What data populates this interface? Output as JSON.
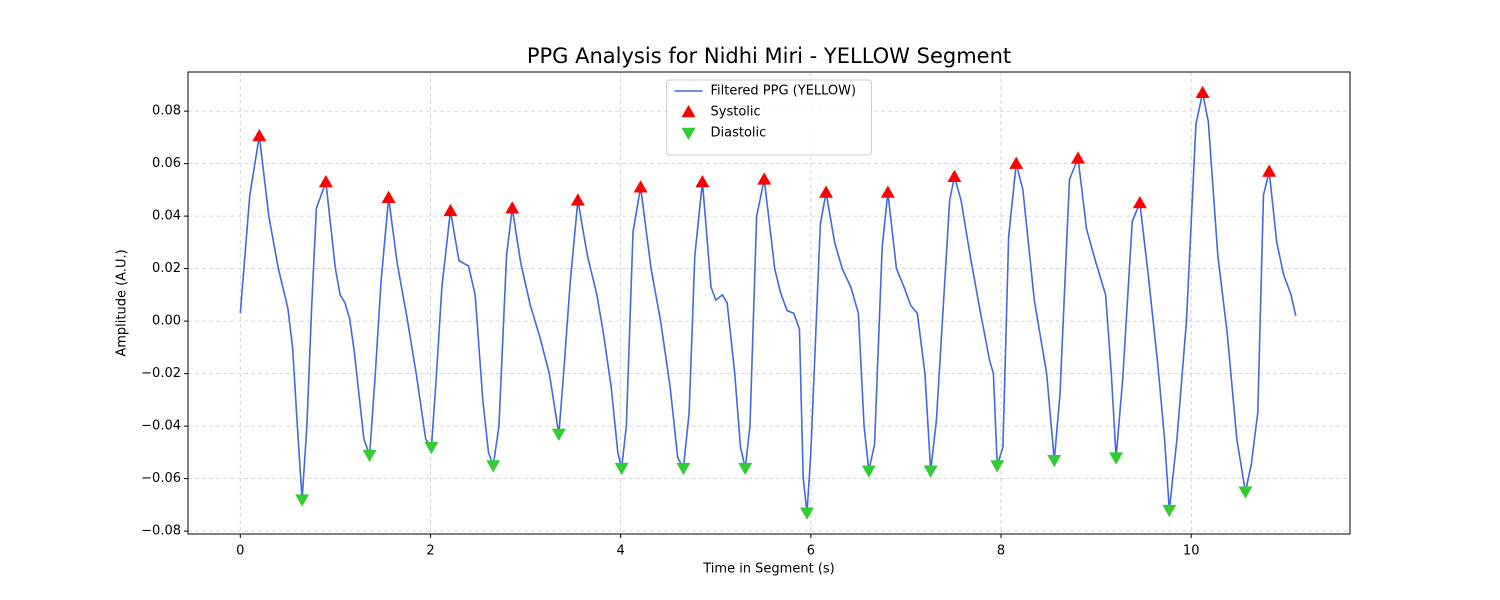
{
  "chart_data": {
    "type": "line",
    "title": "PPG Analysis for Nidhi Miri - YELLOW Segment",
    "xlabel": "Time in Segment (s)",
    "ylabel": "Amplitude (A.U.)",
    "xlim": [
      -0.55,
      11.67
    ],
    "ylim": [
      -0.0811,
      0.0949
    ],
    "xticks": [
      0,
      2,
      4,
      6,
      8,
      10
    ],
    "yticks": [
      {
        "value": -0.08,
        "label": "−0.08"
      },
      {
        "value": -0.06,
        "label": "−0.06"
      },
      {
        "value": -0.04,
        "label": "−0.04"
      },
      {
        "value": -0.02,
        "label": "−0.02"
      },
      {
        "value": 0,
        "label": "0.00"
      },
      0.02,
      0.04,
      0.06,
      0.08
    ],
    "grid": true,
    "legend": "upper center",
    "series": [
      {
        "name": "Filtered PPG (YELLOW)",
        "color": "#4169e1",
        "marker": "none",
        "x": [
          0,
          0.1,
          0.2,
          0.3,
          0.4,
          0.5,
          0.55,
          0.6,
          0.65,
          0.7,
          0.75,
          0.8,
          0.9,
          1.0,
          1.05,
          1.1,
          1.15,
          1.2,
          1.3,
          1.36,
          1.42,
          1.48,
          1.56,
          1.65,
          1.75,
          1.85,
          1.95,
          2.01,
          2.06,
          2.12,
          2.21,
          2.3,
          2.4,
          2.47,
          2.55,
          2.61,
          2.66,
          2.72,
          2.8,
          2.86,
          2.95,
          3.05,
          3.15,
          3.25,
          3.35,
          3.4,
          3.47,
          3.55,
          3.65,
          3.75,
          3.82,
          3.9,
          3.97,
          4.01,
          4.06,
          4.13,
          4.21,
          4.32,
          4.42,
          4.52,
          4.6,
          4.66,
          4.72,
          4.78,
          4.86,
          4.95,
          5.0,
          5.07,
          5.12,
          5.2,
          5.26,
          5.31,
          5.36,
          5.43,
          5.51,
          5.62,
          5.68,
          5.75,
          5.82,
          5.88,
          5.92,
          5.96,
          6.0,
          6.1,
          6.16,
          6.25,
          6.33,
          6.42,
          6.5,
          6.56,
          6.61,
          6.67,
          6.75,
          6.81,
          6.9,
          6.98,
          7.05,
          7.12,
          7.2,
          7.26,
          7.32,
          7.4,
          7.46,
          7.51,
          7.58,
          7.68,
          7.78,
          7.88,
          7.92,
          7.96,
          8.02,
          8.08,
          8.16,
          8.23,
          8.35,
          8.48,
          8.56,
          8.62,
          8.72,
          8.81,
          8.9,
          9.0,
          9.1,
          9.16,
          9.21,
          9.28,
          9.38,
          9.46,
          9.55,
          9.65,
          9.72,
          9.77,
          9.85,
          9.95,
          10.05,
          10.12,
          10.18,
          10.28,
          10.38,
          10.48,
          10.57,
          10.63,
          10.7,
          10.76,
          10.82,
          10.9,
          10.97,
          11.05,
          11.1
        ],
        "values": [
          0.003,
          0.048,
          0.0705,
          0.04,
          0.02,
          0.005,
          -0.01,
          -0.04,
          -0.068,
          -0.04,
          0.005,
          0.043,
          0.053,
          0.02,
          0.01,
          0.007,
          0.001,
          -0.012,
          -0.045,
          -0.051,
          -0.02,
          0.015,
          0.047,
          0.022,
          0.002,
          -0.02,
          -0.045,
          -0.048,
          -0.022,
          0.013,
          0.042,
          0.023,
          0.021,
          0.01,
          -0.03,
          -0.05,
          -0.055,
          -0.04,
          0.025,
          0.043,
          0.022,
          0.006,
          -0.006,
          -0.02,
          -0.043,
          -0.02,
          0.015,
          0.046,
          0.025,
          0.01,
          -0.005,
          -0.025,
          -0.05,
          -0.056,
          -0.04,
          0.034,
          0.051,
          0.02,
          0.0,
          -0.025,
          -0.052,
          -0.056,
          -0.035,
          0.025,
          0.053,
          0.013,
          0.008,
          0.01,
          0.007,
          -0.02,
          -0.048,
          -0.056,
          -0.04,
          0.04,
          0.054,
          0.02,
          0.011,
          0.004,
          0.003,
          -0.003,
          -0.06,
          -0.073,
          -0.05,
          0.037,
          0.049,
          0.03,
          0.02,
          0.013,
          0.003,
          -0.04,
          -0.057,
          -0.047,
          0.028,
          0.049,
          0.02,
          0.013,
          0.006,
          0.003,
          -0.02,
          -0.057,
          -0.038,
          0.01,
          0.046,
          0.055,
          0.046,
          0.024,
          0.004,
          -0.015,
          -0.02,
          -0.055,
          -0.048,
          0.032,
          0.06,
          0.05,
          0.008,
          -0.02,
          -0.053,
          -0.028,
          0.054,
          0.062,
          0.035,
          0.022,
          0.01,
          -0.02,
          -0.052,
          -0.022,
          0.038,
          0.045,
          0.017,
          -0.017,
          -0.045,
          -0.072,
          -0.045,
          0.0,
          0.075,
          0.087,
          0.076,
          0.025,
          -0.005,
          -0.045,
          -0.065,
          -0.055,
          -0.035,
          0.048,
          0.057,
          0.03,
          0.018,
          0.01,
          0.002
        ]
      },
      {
        "name": "Systolic",
        "color": "#ff0000",
        "marker": "up",
        "x": [
          0.2,
          0.9,
          1.56,
          2.21,
          2.86,
          3.55,
          4.21,
          4.86,
          5.51,
          6.16,
          6.81,
          7.51,
          8.16,
          8.81,
          9.46,
          10.12,
          10.82
        ],
        "values": [
          0.0705,
          0.053,
          0.047,
          0.042,
          0.043,
          0.046,
          0.051,
          0.053,
          0.054,
          0.049,
          0.049,
          0.055,
          0.06,
          0.062,
          0.045,
          0.087,
          0.057
        ]
      },
      {
        "name": "Diastolic",
        "color": "#32cd32",
        "marker": "down",
        "x": [
          0.65,
          1.36,
          2.01,
          2.66,
          3.35,
          4.01,
          4.66,
          5.31,
          5.96,
          6.61,
          7.26,
          7.96,
          8.56,
          9.21,
          9.77,
          10.57
        ],
        "values": [
          -0.068,
          -0.051,
          -0.048,
          -0.055,
          -0.043,
          -0.056,
          -0.056,
          -0.056,
          -0.073,
          -0.057,
          -0.057,
          -0.055,
          -0.053,
          -0.052,
          -0.072,
          -0.065
        ]
      }
    ]
  }
}
